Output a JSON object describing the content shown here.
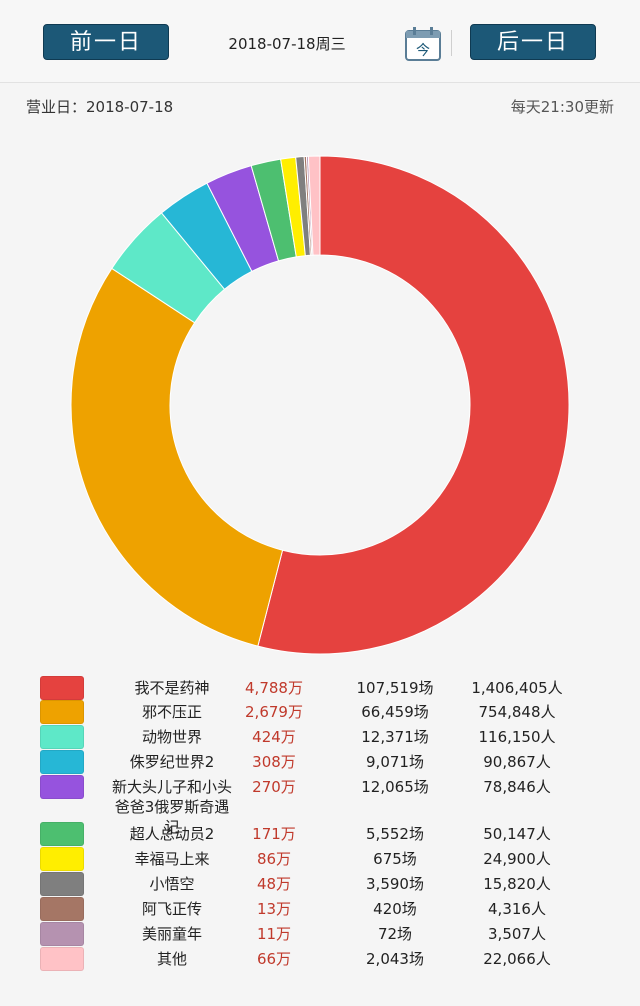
{
  "header": {
    "prev_label": "前一日",
    "next_label": "后一日",
    "date": "2018-07-18周三",
    "calendar_text": "今"
  },
  "info": {
    "business_day": "营业日：2018-07-18",
    "update_time": "每天21:30更新"
  },
  "chart_data": {
    "type": "pie",
    "donut": true,
    "categories": [
      "我不是药神",
      "邪不压正",
      "动物世界",
      "侏罗纪世界2",
      "新大头儿子和小头爸爸3俄罗斯奇遇记",
      "超人总动员2",
      "幸福马上来",
      "小悟空",
      "阿飞正传",
      "美丽童年",
      "其他"
    ],
    "values": [
      4788,
      2679,
      424,
      308,
      270,
      171,
      86,
      48,
      13,
      11,
      66
    ],
    "colors": [
      "#e5423f",
      "#eea200",
      "#5ee8c8",
      "#26b7d6",
      "#9653de",
      "#4dbf70",
      "#ffee00",
      "#7f7f7f",
      "#a57665",
      "#b592b0",
      "#ffc2c6"
    ],
    "unit": "万"
  },
  "legend": {
    "rows": [
      {
        "name": "我不是药神",
        "revenue": "4,788万",
        "shows": "107,519场",
        "people": "1,406,405人"
      },
      {
        "name": "邪不压正",
        "revenue": "2,679万",
        "shows": "66,459场",
        "people": "754,848人"
      },
      {
        "name": "动物世界",
        "revenue": "424万",
        "shows": "12,371场",
        "people": "116,150人"
      },
      {
        "name": "侏罗纪世界2",
        "revenue": "308万",
        "shows": "9,071场",
        "people": "90,867人"
      },
      {
        "name": "新大头儿子和小头爸爸3俄罗斯奇遇记",
        "revenue": "270万",
        "shows": "12,065场",
        "people": "78,846人"
      },
      {
        "name": "超人总动员2",
        "revenue": "171万",
        "shows": "5,552场",
        "people": "50,147人"
      },
      {
        "name": "幸福马上来",
        "revenue": "86万",
        "shows": "675场",
        "people": "24,900人"
      },
      {
        "name": "小悟空",
        "revenue": "48万",
        "shows": "3,590场",
        "people": "15,820人"
      },
      {
        "name": "阿飞正传",
        "revenue": "13万",
        "shows": "420场",
        "people": "4,316人"
      },
      {
        "name": "美丽童年",
        "revenue": "11万",
        "shows": "72场",
        "people": "3,507人"
      },
      {
        "name": "其他",
        "revenue": "66万",
        "shows": "2,043场",
        "people": "22,066人"
      }
    ]
  }
}
